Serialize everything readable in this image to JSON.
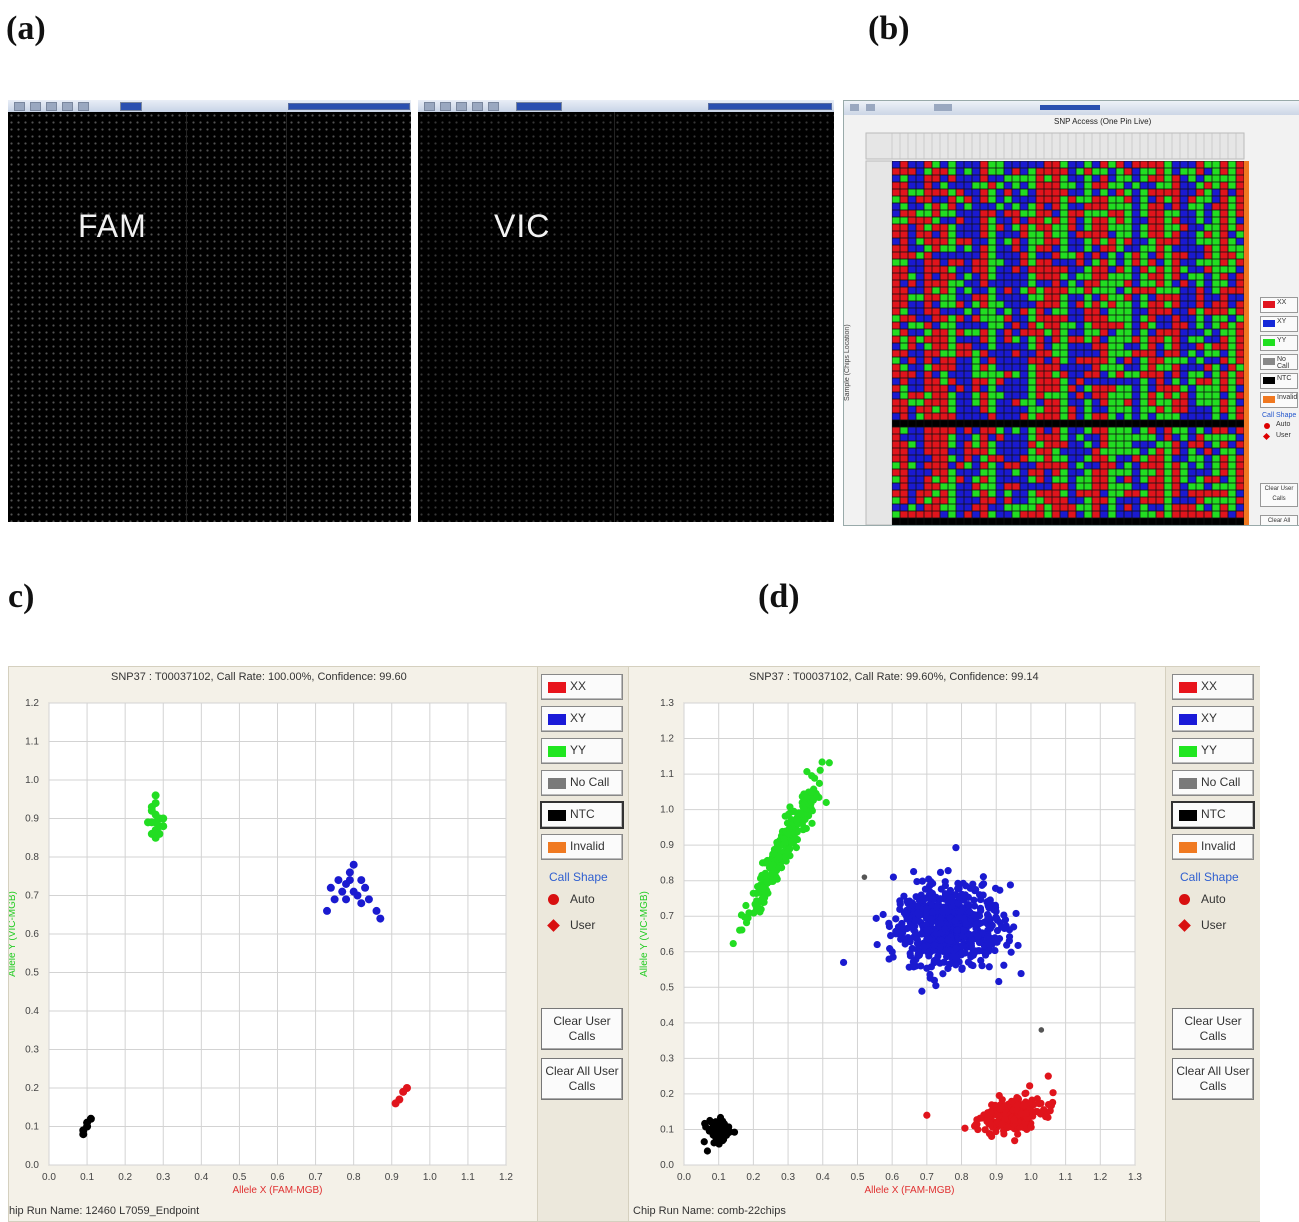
{
  "panels": {
    "a": "(a)",
    "b": "(b)",
    "c": "c)",
    "d": "(d)"
  },
  "images": {
    "fam_label": "FAM",
    "vic_label": "VIC"
  },
  "snp_window": {
    "title": "SNP Access (One Pin Live)",
    "legend": [
      {
        "label": "XX",
        "color": "#e0141e"
      },
      {
        "label": "XY",
        "color": "#1428d8"
      },
      {
        "label": "YY",
        "color": "#20e020"
      },
      {
        "label": "No Call",
        "color": "#888888"
      },
      {
        "label": "NTC",
        "color": "#000000"
      },
      {
        "label": "Invalid",
        "color": "#f07820"
      }
    ],
    "call_shape": "Call Shape",
    "auto": "Auto",
    "user": "User",
    "ylabel": "Sample (Chips Location)"
  },
  "legend": {
    "items": [
      {
        "label": "XX",
        "color": "#e8141c"
      },
      {
        "label": "XY",
        "color": "#1a1ad8"
      },
      {
        "label": "YY",
        "color": "#20e620"
      },
      {
        "label": "No Call",
        "color": "#7a7a7a"
      },
      {
        "label": "NTC",
        "color": "#000000"
      },
      {
        "label": "Invalid",
        "color": "#f07a22"
      }
    ],
    "call_shape_title": "Call Shape",
    "auto_label": "Auto",
    "user_label": "User",
    "clear_user_calls": "Clear User Calls",
    "clear_all_user_calls": "Clear All User Calls"
  },
  "colors": {
    "xx": "#e0141c",
    "xy": "#1a1ad0",
    "yy": "#22dd22",
    "ntc": "#000000",
    "nocall": "#555555",
    "xlabel": "#e03030",
    "ylabel": "#22cc22"
  },
  "chart_data": [
    {
      "type": "scatter",
      "title": "SNP37 : T00037102, Call Rate: 100.00%, Confidence: 99.60",
      "xlabel": "Allele X (FAM-MGB)",
      "ylabel": "Allele Y (VIC-MGB)",
      "xlim": [
        0.0,
        1.2
      ],
      "ylim": [
        0.0,
        1.2
      ],
      "xticks": [
        "0.0",
        "0.1",
        "0.2",
        "0.3",
        "0.4",
        "0.5",
        "0.6",
        "0.7",
        "0.8",
        "0.9",
        "1.0",
        "1.1",
        "1.2"
      ],
      "yticks": [
        "0.0",
        "0.1",
        "0.2",
        "0.3",
        "0.4",
        "0.5",
        "0.6",
        "0.7",
        "0.8",
        "0.9",
        "1.0",
        "1.1",
        "1.2"
      ],
      "grid": true,
      "chip_run": "hip Run Name: 12460 L7059_Endpoint",
      "series": [
        {
          "name": "YY",
          "points": [
            [
              0.27,
              0.93
            ],
            [
              0.28,
              0.96
            ],
            [
              0.28,
              0.91
            ],
            [
              0.29,
              0.9
            ],
            [
              0.27,
              0.89
            ],
            [
              0.28,
              0.87
            ],
            [
              0.29,
              0.86
            ],
            [
              0.26,
              0.89
            ],
            [
              0.3,
              0.9
            ],
            [
              0.28,
              0.94
            ],
            [
              0.27,
              0.92
            ],
            [
              0.29,
              0.88
            ],
            [
              0.28,
              0.85
            ],
            [
              0.3,
              0.88
            ],
            [
              0.27,
              0.86
            ],
            [
              0.28,
              0.89
            ]
          ]
        },
        {
          "name": "XY",
          "points": [
            [
              0.79,
              0.76
            ],
            [
              0.8,
              0.78
            ],
            [
              0.78,
              0.73
            ],
            [
              0.82,
              0.74
            ],
            [
              0.76,
              0.74
            ],
            [
              0.74,
              0.72
            ],
            [
              0.81,
              0.7
            ],
            [
              0.83,
              0.72
            ],
            [
              0.78,
              0.69
            ],
            [
              0.8,
              0.71
            ],
            [
              0.84,
              0.69
            ],
            [
              0.77,
              0.71
            ],
            [
              0.86,
              0.66
            ],
            [
              0.87,
              0.64
            ],
            [
              0.73,
              0.66
            ],
            [
              0.82,
              0.68
            ],
            [
              0.79,
              0.74
            ],
            [
              0.75,
              0.69
            ]
          ]
        },
        {
          "name": "XX",
          "points": [
            [
              0.94,
              0.2
            ],
            [
              0.93,
              0.19
            ],
            [
              0.91,
              0.16
            ],
            [
              0.92,
              0.17
            ]
          ]
        },
        {
          "name": "NTC",
          "points": [
            [
              0.09,
              0.09
            ],
            [
              0.1,
              0.11
            ],
            [
              0.11,
              0.12
            ],
            [
              0.1,
              0.1
            ],
            [
              0.09,
              0.08
            ]
          ]
        }
      ]
    },
    {
      "type": "scatter",
      "title": "SNP37 : T00037102, Call Rate: 99.60%, Confidence: 99.14",
      "xlabel": "Allele X (FAM-MGB)",
      "ylabel": "Allele Y (VIC-MGB)",
      "xlim": [
        0.0,
        1.3
      ],
      "ylim": [
        0.0,
        1.3
      ],
      "xticks": [
        "0.0",
        "0.1",
        "0.2",
        "0.3",
        "0.4",
        "0.5",
        "0.6",
        "0.7",
        "0.8",
        "0.9",
        "1.0",
        "1.1",
        "1.2",
        "1.3"
      ],
      "yticks": [
        "0.0",
        "0.1",
        "0.2",
        "0.3",
        "0.4",
        "0.5",
        "0.6",
        "0.7",
        "0.8",
        "0.9",
        "1.0",
        "1.1",
        "1.2",
        "1.3"
      ],
      "grid": true,
      "chip_run": "Chip Run Name: comb-22chips",
      "clusters": [
        {
          "name": "YY",
          "center": [
            0.28,
            0.88
          ],
          "spread": [
            0.03,
            0.08
          ],
          "tilt": 0.9,
          "count": 260
        },
        {
          "name": "XY",
          "center": [
            0.76,
            0.67
          ],
          "spread": [
            0.075,
            0.055
          ],
          "tilt": 0.0,
          "count": 650
        },
        {
          "name": "XX",
          "center": [
            0.95,
            0.14
          ],
          "spread": [
            0.05,
            0.022
          ],
          "tilt": 0.25,
          "count": 260
        },
        {
          "name": "NTC",
          "center": [
            0.1,
            0.09
          ],
          "spread": [
            0.018,
            0.018
          ],
          "tilt": 0.8,
          "count": 60
        }
      ],
      "outliers": [
        {
          "name": "XY",
          "x": 0.46,
          "y": 0.57
        },
        {
          "name": "XX",
          "x": 0.7,
          "y": 0.14
        },
        {
          "name": "No Call",
          "x": 0.52,
          "y": 0.81
        },
        {
          "name": "No Call",
          "x": 1.03,
          "y": 0.38
        },
        {
          "name": "YY",
          "x": 0.41,
          "y": 1.02
        },
        {
          "name": "XX",
          "x": 1.05,
          "y": 0.25
        }
      ]
    }
  ]
}
